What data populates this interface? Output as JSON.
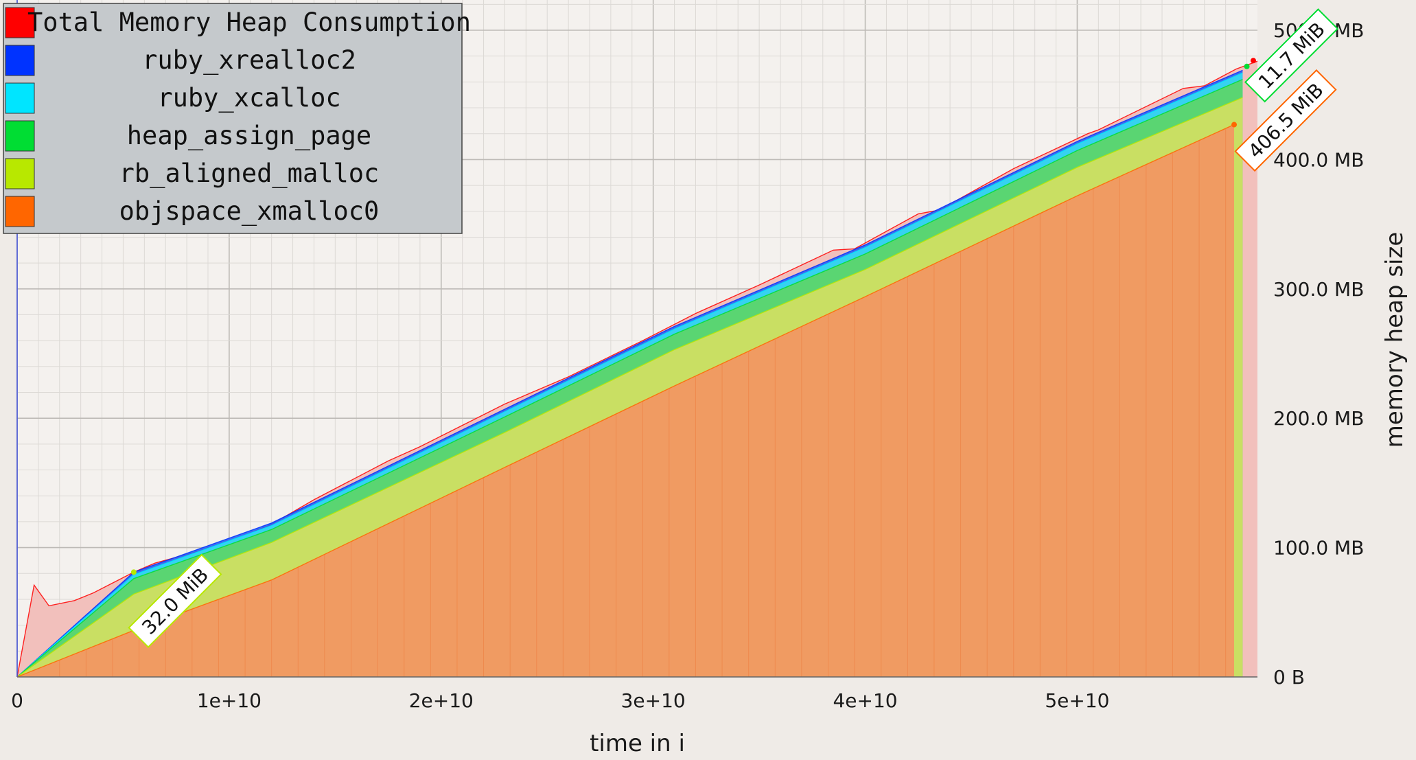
{
  "chart_data": {
    "type": "area",
    "xlabel": "time in i",
    "ylabel": "memory heap size",
    "xlim": [
      0,
      58500000000
    ],
    "ylim": [
      0,
      500
    ],
    "x_ticks": [
      {
        "value": 0,
        "label": "0"
      },
      {
        "value": 10000000000,
        "label": "1e+10"
      },
      {
        "value": 20000000000,
        "label": "2e+10"
      },
      {
        "value": 30000000000,
        "label": "3e+10"
      },
      {
        "value": 40000000000,
        "label": "4e+10"
      },
      {
        "value": 50000000000,
        "label": "5e+10"
      }
    ],
    "y_ticks": [
      {
        "value": 0,
        "label": "0 B"
      },
      {
        "value": 100,
        "label": "100.0 MB"
      },
      {
        "value": 200,
        "label": "200.0 MB"
      },
      {
        "value": 300,
        "label": "300.0 MB"
      },
      {
        "value": 400,
        "label": "400.0 MB"
      },
      {
        "value": 500,
        "label": "500.0 MB"
      }
    ],
    "grid": true,
    "legend_position": "top-left",
    "stacked": true,
    "series": [
      {
        "name": "Total Memory Heap Consumption",
        "color": "#ff0000",
        "fill": "#f2c0bc",
        "points": [
          [
            0,
            0
          ],
          [
            800000000,
            71
          ],
          [
            1500000000,
            55
          ],
          [
            2700000000,
            59
          ],
          [
            3600000000,
            65
          ],
          [
            5500000000,
            81
          ],
          [
            6500000000,
            88
          ],
          [
            8500000000,
            97
          ],
          [
            10500000000,
            108
          ],
          [
            12000000000,
            118
          ],
          [
            14000000000,
            137
          ],
          [
            17500000000,
            167
          ],
          [
            19000000000,
            178
          ],
          [
            23000000000,
            211
          ],
          [
            26000000000,
            232
          ],
          [
            29500000000,
            260
          ],
          [
            32000000000,
            281
          ],
          [
            35000000000,
            303
          ],
          [
            38500000000,
            330
          ],
          [
            39500000000,
            331
          ],
          [
            42500000000,
            358
          ],
          [
            43500000000,
            361
          ],
          [
            47000000000,
            393
          ],
          [
            50500000000,
            420
          ],
          [
            51000000000,
            423
          ],
          [
            55000000000,
            455
          ],
          [
            56000000000,
            457
          ],
          [
            57500000000,
            470
          ],
          [
            58500000000,
            476
          ],
          [
            58500000000,
            0
          ]
        ]
      },
      {
        "name": "ruby_xrealloc2",
        "color": "#0033ff",
        "fill": "#2f63f2",
        "points": [
          [
            0,
            0
          ],
          [
            5500000000,
            81
          ],
          [
            12000000000,
            119
          ],
          [
            23000000000,
            207
          ],
          [
            31000000000,
            271
          ],
          [
            40000000000,
            334
          ],
          [
            50000000000,
            414
          ],
          [
            57800000000,
            469
          ]
        ]
      },
      {
        "name": "ruby_xcalloc",
        "color": "#00e5ff",
        "fill": "#35dbf0",
        "points": [
          [
            0,
            0
          ],
          [
            5500000000,
            79
          ],
          [
            12000000000,
            117
          ],
          [
            23000000000,
            205
          ],
          [
            31000000000,
            269
          ],
          [
            40000000000,
            332
          ],
          [
            50000000000,
            412
          ],
          [
            57800000000,
            467
          ]
        ]
      },
      {
        "name": "heap_assign_page",
        "color": "#00dd33",
        "fill": "#5dd567",
        "points": [
          [
            0,
            0
          ],
          [
            5500000000,
            76
          ],
          [
            12000000000,
            114
          ],
          [
            23000000000,
            201
          ],
          [
            31000000000,
            265
          ],
          [
            40000000000,
            327
          ],
          [
            50000000000,
            407
          ],
          [
            57800000000,
            462
          ]
        ]
      },
      {
        "name": "rb_aligned_malloc",
        "color": "#b8e800",
        "fill": "#d3e062",
        "points": [
          [
            0,
            0
          ],
          [
            5500000000,
            64
          ],
          [
            12000000000,
            104
          ],
          [
            23000000000,
            189
          ],
          [
            31000000000,
            253
          ],
          [
            40000000000,
            315
          ],
          [
            50000000000,
            394
          ],
          [
            57800000000,
            448
          ]
        ]
      },
      {
        "name": "objspace_xmalloc0",
        "color": "#ff6600",
        "fill": "#f39562",
        "points": [
          [
            0,
            0
          ],
          [
            5500000000,
            36
          ],
          [
            12000000000,
            75
          ],
          [
            23000000000,
            162
          ],
          [
            31000000000,
            225
          ],
          [
            40000000000,
            294
          ],
          [
            50000000000,
            372
          ],
          [
            57400000000,
            427
          ]
        ]
      }
    ],
    "annotations": [
      {
        "text": "32.0 MiB",
        "x": 5500000000,
        "y": 81,
        "color": "#b8e800"
      },
      {
        "text": "11.7 MiB",
        "x": 58000000000,
        "y": 472,
        "color": "#00dd33"
      },
      {
        "text": "406.5 MiB",
        "x": 57400000000,
        "y": 427,
        "color": "#ff6600"
      }
    ]
  }
}
